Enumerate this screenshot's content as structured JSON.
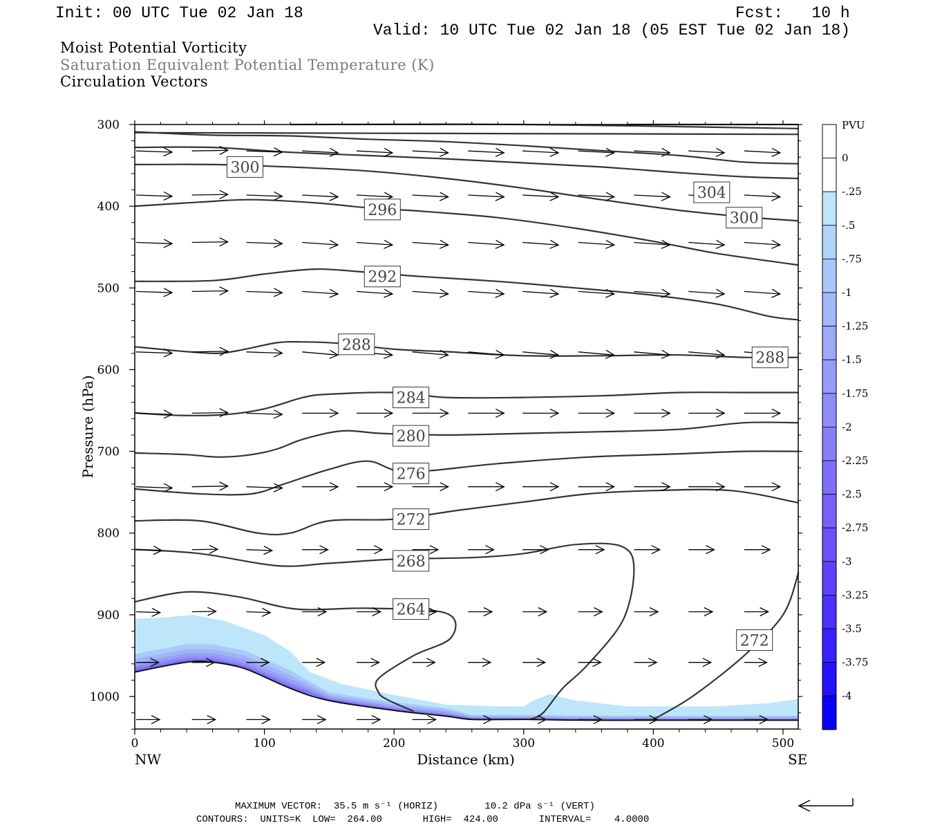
{
  "header": {
    "init": "Init: 00 UTC Tue 02 Jan 18",
    "fcst": "Fcst:   10 h",
    "valid": "Valid: 10 UTC Tue 02 Jan 18 (05 EST Tue 02 Jan 18)"
  },
  "titles": [
    "Moist Potential Vorticity",
    "Saturation Equivalent Potential Temperature (K)",
    "Circulation Vectors"
  ],
  "footer": {
    "vector_line": "MAXIMUM VECTOR:  35.5 m s⁻¹ (HORIZ)        10.2 dPa s⁻¹ (VERT)",
    "contours_line": "CONTOURS:  UNITS=K  LOW=  264.00       HIGH=  424.00       INTERVAL=    4.0000"
  },
  "colors": {
    "contour": "#333333",
    "mpv_shading": [
      "#bde6fb",
      "#a9c9f8",
      "#a0b3f7",
      "#9a9ef6",
      "#8f8af6",
      "#7a75f7"
    ]
  },
  "chart_data": {
    "type": "cross-section",
    "xlabel": "Distance (km)",
    "ylabel": "Pressure (hPa)",
    "x_endpoints": {
      "left": "NW",
      "right": "SE"
    },
    "xlim": [
      0,
      512
    ],
    "ylim": [
      300,
      1040
    ],
    "xticks": [
      0,
      100,
      200,
      300,
      400,
      500
    ],
    "yticks": [
      300,
      400,
      500,
      600,
      700,
      800,
      900,
      1000
    ],
    "terrain_surface": [
      [
        0,
        970
      ],
      [
        40,
        958
      ],
      [
        60,
        958
      ],
      [
        85,
        966
      ],
      [
        120,
        990
      ],
      [
        150,
        1005
      ],
      [
        200,
        1017
      ],
      [
        240,
        1024
      ],
      [
        260,
        1028
      ],
      [
        300,
        1028
      ],
      [
        350,
        1029
      ],
      [
        400,
        1029
      ],
      [
        450,
        1029
      ],
      [
        512,
        1029
      ]
    ],
    "contours": [
      {
        "level": 264,
        "points": [
          [
            0,
            884
          ],
          [
            40,
            872
          ],
          [
            80,
            878
          ],
          [
            125,
            893
          ],
          [
            180,
            892
          ],
          [
            240,
            898
          ],
          [
            244,
            928
          ],
          [
            215,
            950
          ],
          [
            188,
            978
          ],
          [
            188,
            995
          ],
          [
            195,
            1004
          ],
          [
            215,
            1018
          ]
        ],
        "labels": [
          [
            213,
            893
          ]
        ]
      },
      {
        "level": 268,
        "points": [
          [
            0,
            820
          ],
          [
            50,
            825
          ],
          [
            110,
            840
          ],
          [
            150,
            837
          ],
          [
            200,
            832
          ],
          [
            260,
            830
          ],
          [
            300,
            825
          ],
          [
            340,
            814
          ],
          [
            375,
            816
          ],
          [
            385,
            842
          ],
          [
            377,
            905
          ],
          [
            350,
            960
          ],
          [
            330,
            990
          ],
          [
            315,
            1020
          ],
          [
            305,
            1028
          ]
        ],
        "labels": [
          [
            213,
            834
          ]
        ]
      },
      {
        "level": 272,
        "points": [
          [
            0,
            785
          ],
          [
            50,
            785
          ],
          [
            95,
            800
          ],
          [
            120,
            800
          ],
          [
            150,
            785
          ],
          [
            200,
            783
          ],
          [
            250,
            772
          ],
          [
            300,
            762
          ],
          [
            350,
            752
          ],
          [
            400,
            748
          ],
          [
            460,
            748
          ],
          [
            512,
            763
          ]
        ],
        "labels": [
          [
            213,
            783
          ]
        ],
        "labels_extra": [
          [
            478,
            931
          ]
        ]
      },
      {
        "level": 272,
        "points": [
          [
            400,
            1028
          ],
          [
            430,
            1000
          ],
          [
            470,
            950
          ],
          [
            500,
            900
          ],
          [
            512,
            848
          ]
        ],
        "labels": []
      },
      {
        "level": 276,
        "points": [
          [
            0,
            746
          ],
          [
            50,
            752
          ],
          [
            90,
            752
          ],
          [
            115,
            740
          ],
          [
            150,
            722
          ],
          [
            180,
            712
          ],
          [
            210,
            725
          ],
          [
            280,
            715
          ],
          [
            350,
            707
          ],
          [
            420,
            703
          ],
          [
            470,
            700
          ],
          [
            512,
            700
          ]
        ],
        "labels": [
          [
            213,
            727
          ]
        ]
      },
      {
        "level": 280,
        "points": [
          [
            0,
            702
          ],
          [
            40,
            704
          ],
          [
            65,
            707
          ],
          [
            90,
            704
          ],
          [
            110,
            697
          ],
          [
            130,
            685
          ],
          [
            160,
            675
          ],
          [
            190,
            678
          ],
          [
            240,
            680
          ],
          [
            300,
            678
          ],
          [
            360,
            676
          ],
          [
            420,
            673
          ],
          [
            470,
            665
          ],
          [
            512,
            665
          ]
        ],
        "labels": [
          [
            213,
            681
          ]
        ]
      },
      {
        "level": 284,
        "points": [
          [
            0,
            653
          ],
          [
            35,
            656
          ],
          [
            70,
            655
          ],
          [
            100,
            648
          ],
          [
            130,
            634
          ],
          [
            150,
            630
          ],
          [
            200,
            628
          ],
          [
            240,
            634
          ],
          [
            300,
            634
          ],
          [
            360,
            632
          ],
          [
            420,
            628
          ],
          [
            470,
            628
          ],
          [
            512,
            628
          ]
        ],
        "labels": [
          [
            213,
            634
          ]
        ]
      },
      {
        "level": 288,
        "points": [
          [
            0,
            572
          ],
          [
            40,
            578
          ],
          [
            65,
            580
          ],
          [
            85,
            575
          ],
          [
            110,
            567
          ],
          [
            130,
            566
          ],
          [
            160,
            568
          ],
          [
            200,
            575
          ],
          [
            240,
            578
          ],
          [
            300,
            583
          ],
          [
            360,
            583
          ],
          [
            420,
            582
          ],
          [
            470,
            585
          ],
          [
            512,
            585
          ]
        ],
        "labels": [
          [
            171,
            569
          ]
        ],
        "labels_extra": [
          [
            490,
            585
          ]
        ]
      },
      {
        "level": 292,
        "points": [
          [
            0,
            492
          ],
          [
            60,
            491
          ],
          [
            100,
            483
          ],
          [
            140,
            477
          ],
          [
            180,
            481
          ],
          [
            220,
            486
          ],
          [
            280,
            492
          ],
          [
            340,
            500
          ],
          [
            400,
            509
          ],
          [
            450,
            520
          ],
          [
            490,
            535
          ],
          [
            512,
            539
          ]
        ],
        "labels": [
          [
            191,
            486
          ]
        ]
      },
      {
        "level": 296,
        "points": [
          [
            0,
            400
          ],
          [
            50,
            395
          ],
          [
            90,
            392
          ],
          [
            140,
            396
          ],
          [
            180,
            402
          ],
          [
            220,
            406
          ],
          [
            280,
            414
          ],
          [
            340,
            427
          ],
          [
            400,
            443
          ],
          [
            450,
            458
          ],
          [
            512,
            472
          ]
        ],
        "labels": [
          [
            191,
            404
          ]
        ]
      },
      {
        "level": 300,
        "points": [
          [
            0,
            349
          ],
          [
            60,
            349
          ],
          [
            120,
            352
          ],
          [
            180,
            357
          ],
          [
            240,
            366
          ],
          [
            300,
            378
          ],
          [
            360,
            392
          ],
          [
            420,
            405
          ],
          [
            470,
            413
          ],
          [
            512,
            418
          ]
        ],
        "labels": [
          [
            85,
            352
          ]
        ],
        "labels_extra": [
          [
            470,
            414
          ]
        ]
      },
      {
        "level": 304,
        "points": [
          [
            0,
            328
          ],
          [
            60,
            328
          ],
          [
            120,
            334
          ],
          [
            180,
            338
          ],
          [
            240,
            342
          ],
          [
            300,
            347
          ],
          [
            360,
            352
          ],
          [
            420,
            359
          ],
          [
            470,
            364
          ],
          [
            512,
            366
          ]
        ],
        "labels": [
          [
            445,
            383
          ]
        ]
      },
      {
        "level": 308,
        "points": [
          [
            0,
            309
          ],
          [
            60,
            313
          ],
          [
            120,
            314
          ],
          [
            180,
            318
          ],
          [
            240,
            321
          ],
          [
            300,
            326
          ],
          [
            360,
            332
          ],
          [
            420,
            338
          ],
          [
            470,
            346
          ],
          [
            512,
            348
          ]
        ],
        "labels": []
      },
      {
        "level": 312,
        "points": [
          [
            0,
            310
          ],
          [
            512,
            312
          ]
        ],
        "labels": []
      },
      {
        "level": 316,
        "points": [
          [
            380,
            300
          ],
          [
            512,
            300
          ]
        ],
        "labels": []
      },
      {
        "level": 312,
        "points": [
          [
            120,
            300
          ],
          [
            300,
            300
          ],
          [
            512,
            305
          ]
        ],
        "labels": []
      }
    ],
    "mpv_colorbar": {
      "units": "PVU",
      "levels": [
        "0",
        "-.25",
        "-.5",
        "-.75",
        "-1",
        "-1.25",
        "-1.5",
        "-1.75",
        "-2",
        "-2.25",
        "-2.5",
        "-2.75",
        "-3",
        "-3.25",
        "-3.5",
        "-3.75",
        "-4"
      ]
    },
    "max_vector": {
      "horizontal_m_s": 35.5,
      "vertical_dPa_s": 10.2
    },
    "contour_info": {
      "units": "K",
      "low": 264.0,
      "high": 424.0,
      "interval": 4.0
    }
  }
}
